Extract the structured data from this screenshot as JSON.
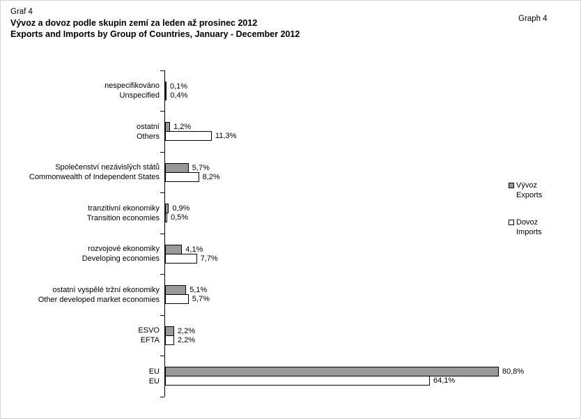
{
  "header": {
    "graf_label": "Graf 4",
    "title_cs": "Vývoz a dovoz podle skupin zemí za leden až prosinec 2012",
    "title_en": "Exports and Imports by Group of Countries, January - December 2012",
    "graph_label": "Graph 4"
  },
  "chart_data": {
    "type": "bar",
    "orientation": "horizontal",
    "title_cs": "Vývoz a dovoz podle skupin zemí za leden až prosinec 2012",
    "title_en": "Exports and Imports by Group of Countries, January - December 2012",
    "grid": false,
    "xlim": [
      0,
      84
    ],
    "legend_position": "right",
    "value_format": "czech decimal comma, percent",
    "categories": [
      {
        "cs": "nespecifikováno",
        "en": "Unspecified"
      },
      {
        "cs": "ostatní",
        "en": "Others"
      },
      {
        "cs": "Společenství nezávislých států",
        "en": "Commonwealth of Independent States"
      },
      {
        "cs": "tranzitivní ekonomiky",
        "en": "Transition economies"
      },
      {
        "cs": "rozvojové ekonomiky",
        "en": "Developing economies"
      },
      {
        "cs": "ostatní vyspělé tržní ekonomiky",
        "en": "Other developed market economies"
      },
      {
        "cs": "ESVO",
        "en": "EFTA"
      },
      {
        "cs": "EU",
        "en": "EU"
      }
    ],
    "series": [
      {
        "key": "exports",
        "name_cs": "Vývoz",
        "name_en": "Exports",
        "color": "#999999",
        "values": [
          0.1,
          1.2,
          5.7,
          0.9,
          4.1,
          5.1,
          2.2,
          80.8
        ],
        "labels": [
          "0,1%",
          "1,2%",
          "5,7%",
          "0,9%",
          "4,1%",
          "5,1%",
          "2,2%",
          "80,8%"
        ]
      },
      {
        "key": "imports",
        "name_cs": "Dovoz",
        "name_en": "Imports",
        "color": "#ffffff",
        "values": [
          0.4,
          11.3,
          8.2,
          0.5,
          7.7,
          5.7,
          2.2,
          64.1
        ],
        "labels": [
          "0,4%",
          "11,3%",
          "8,2%",
          "0,5%",
          "7,7%",
          "5,7%",
          "2,2%",
          "64,1%"
        ]
      }
    ]
  }
}
